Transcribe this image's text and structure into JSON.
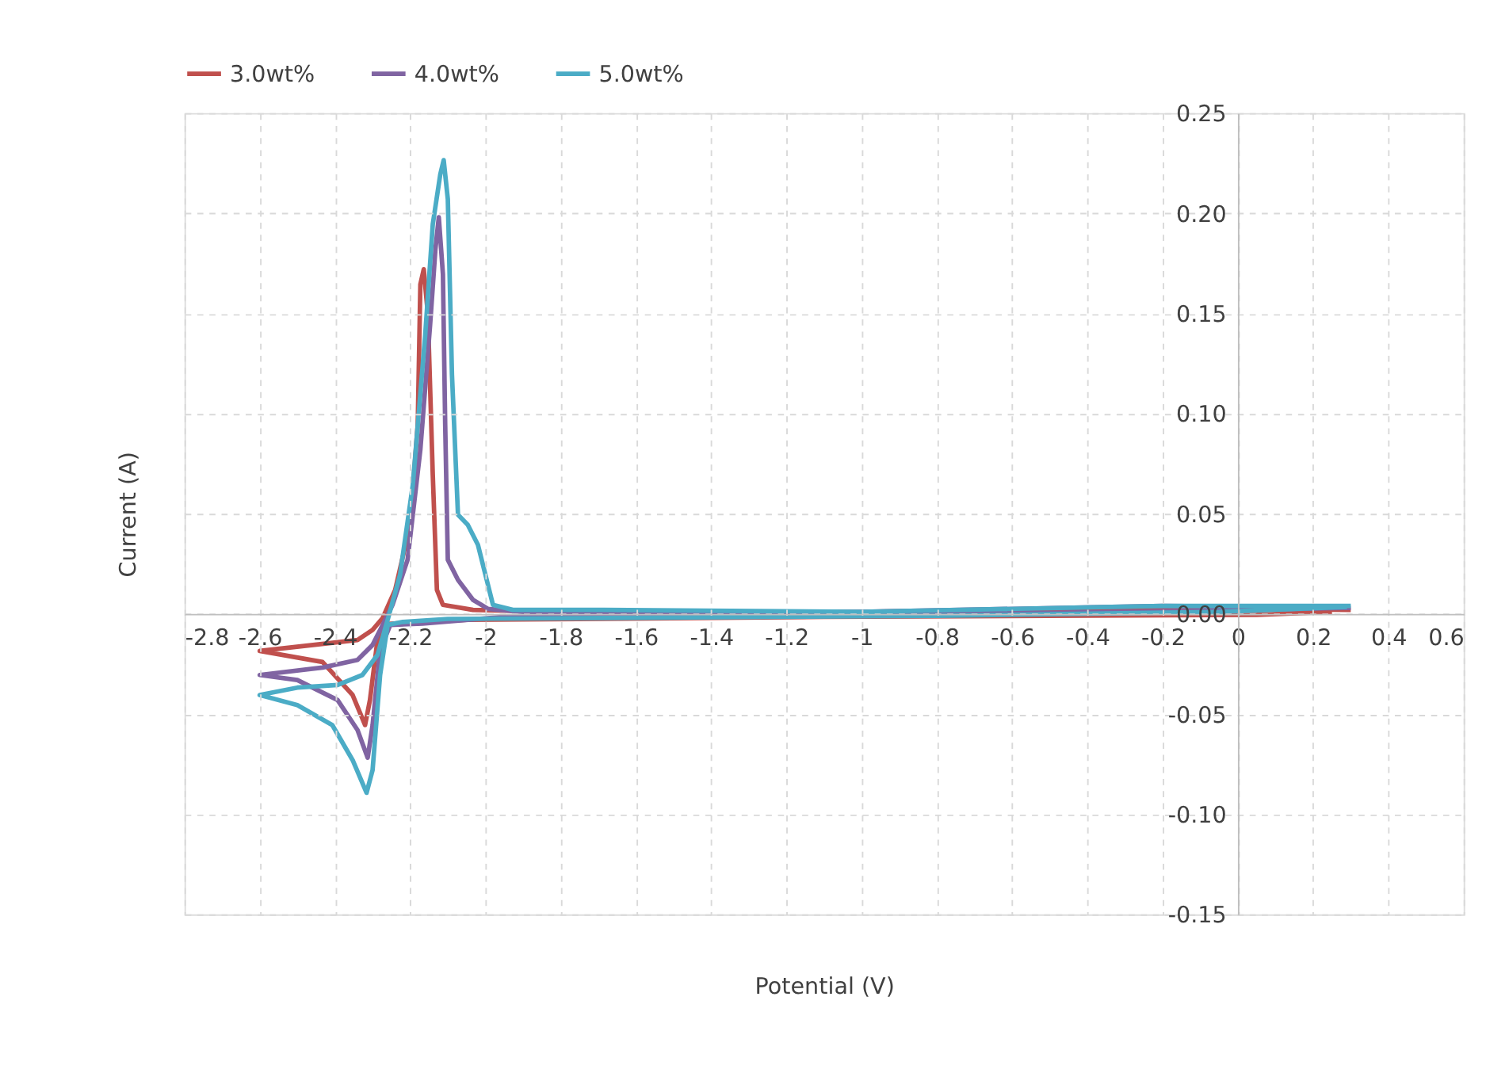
{
  "chart_data": {
    "type": "line",
    "xlabel": "Potential (V)",
    "ylabel": "Current (A)",
    "legend": "top",
    "grid": true,
    "line_style": "solid",
    "marker": "none",
    "xlim": [
      -2.8,
      0.6
    ],
    "xticks": [
      -2.8,
      -2.6,
      -2.4,
      -2.2,
      -2,
      -1.8,
      -1.6,
      -1.4,
      -1.2,
      -1,
      -0.8,
      -0.6,
      -0.4,
      -0.2,
      0,
      0.2,
      0.4,
      0.6
    ],
    "ylim": [
      -0.15,
      0.25
    ],
    "yticks": [
      {
        "value": -0.15,
        "label": "-0.15"
      },
      {
        "value": -0.1,
        "label": "-0.10"
      },
      {
        "value": -0.05,
        "label": "-0.05"
      },
      {
        "value": 0,
        "label": "0.00"
      },
      {
        "value": 0.05,
        "label": "0.05"
      },
      {
        "value": 0.1,
        "label": "0.10"
      },
      {
        "value": 0.15,
        "label": "0.15"
      },
      {
        "value": 0.2,
        "label": "0.20"
      },
      {
        "value": 0.25,
        "label": "0.25"
      }
    ],
    "series": [
      {
        "name": "3.0wt%",
        "color": "#c0504d",
        "x": [
          0.25,
          0.05,
          -1.1,
          -2.05,
          -2.167,
          -2.26,
          -2.287,
          -2.307,
          -2.32,
          -2.353,
          -2.433,
          -2.6,
          -2.34,
          -2.3,
          -2.273,
          -2.24,
          -2.2,
          -2.18,
          -2.173,
          -2.164,
          -2.153,
          -2.14,
          -2.129,
          -2.113,
          -2.033,
          -1.8,
          -1,
          -0.2,
          0.3
        ],
        "values": [
          0.001,
          -0.0005,
          -0.0015,
          -0.003,
          -0.004,
          -0.005,
          -0.013,
          -0.043,
          -0.0555,
          -0.0405,
          -0.024,
          -0.0185,
          -0.013,
          -0.008,
          -0.002,
          0.012,
          0.0445,
          0.0945,
          0.1645,
          0.172,
          0.1495,
          0.0695,
          0.012,
          0.0045,
          0.002,
          0.001,
          0.001,
          0.003,
          0.002
        ]
      },
      {
        "name": "4.0wt%",
        "color": "#8064a2",
        "x": [
          0.28,
          -0.1,
          -0.9,
          -1.95,
          -2.167,
          -2.253,
          -2.28,
          -2.3,
          -2.313,
          -2.34,
          -2.393,
          -2.5,
          -2.6,
          -2.433,
          -2.34,
          -2.3,
          -2.273,
          -2.247,
          -2.207,
          -2.173,
          -2.147,
          -2.133,
          -2.124,
          -2.113,
          -2.107,
          -2.1,
          -2.073,
          -2.033,
          -1.993,
          -1.9,
          -1,
          -0.2,
          0.3
        ],
        "values": [
          0.003,
          0.0015,
          -0.0005,
          -0.0015,
          -0.0048,
          -0.0055,
          -0.018,
          -0.0555,
          -0.0718,
          -0.058,
          -0.043,
          -0.033,
          -0.0305,
          -0.0268,
          -0.023,
          -0.0155,
          -0.0055,
          0.0045,
          0.027,
          0.082,
          0.1445,
          0.182,
          0.198,
          0.1695,
          0.0945,
          0.027,
          0.017,
          0.007,
          0.0025,
          0.001,
          0.001,
          0.004,
          0.003
        ]
      },
      {
        "name": "5.0wt%",
        "color": "#4bacc6",
        "x": [
          0.29,
          -0.05,
          -0.8,
          -2.1,
          -2.22,
          -2.26,
          -2.28,
          -2.3,
          -2.316,
          -2.353,
          -2.407,
          -2.5,
          -2.6,
          -2.5,
          -2.393,
          -2.327,
          -2.287,
          -2.26,
          -2.227,
          -2.193,
          -2.16,
          -2.14,
          -2.12,
          -2.111,
          -2.1,
          -2.089,
          -2.073,
          -2.047,
          -2.02,
          -2,
          -1.98,
          -1.927,
          -1.7,
          -1,
          -0.2,
          0.3
        ],
        "values": [
          0.0035,
          0.001,
          -0.001,
          -0.0025,
          -0.004,
          -0.0055,
          -0.0305,
          -0.078,
          -0.0893,
          -0.073,
          -0.0555,
          -0.0455,
          -0.0405,
          -0.0368,
          -0.0355,
          -0.0305,
          -0.0205,
          -0.003,
          0.0195,
          0.0645,
          0.1395,
          0.1945,
          0.2195,
          0.2265,
          0.207,
          0.1195,
          0.0495,
          0.0445,
          0.0345,
          0.0195,
          0.0045,
          0.002,
          0.002,
          0.001,
          0.004,
          0.004
        ]
      }
    ]
  }
}
